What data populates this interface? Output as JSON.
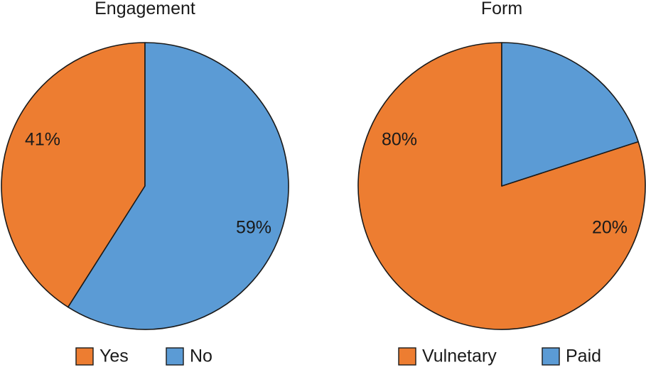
{
  "chart_data": [
    {
      "type": "pie",
      "title": "Engagement",
      "slices": [
        {
          "label": "Yes",
          "value": 41,
          "display": "41%"
        },
        {
          "label": "No",
          "value": 59,
          "display": "59%"
        }
      ],
      "legend_position": "bottom",
      "colors": {
        "Yes": "#ED7D31",
        "No": "#5B9BD5"
      },
      "start": "12 o'clock",
      "direction": "Yes counter-clockwise from top, No clockwise from top"
    },
    {
      "type": "pie",
      "title": "Form",
      "slices": [
        {
          "label": "Vulnetary",
          "value": 80,
          "display": "80%"
        },
        {
          "label": "Paid",
          "value": 20,
          "display": "20%"
        }
      ],
      "legend_position": "bottom",
      "colors": {
        "Vulnetary": "#ED7D31",
        "Paid": "#5B9BD5"
      },
      "start": "12 o'clock",
      "direction": "Paid clockwise from top, Vulnetary fills the rest"
    }
  ]
}
